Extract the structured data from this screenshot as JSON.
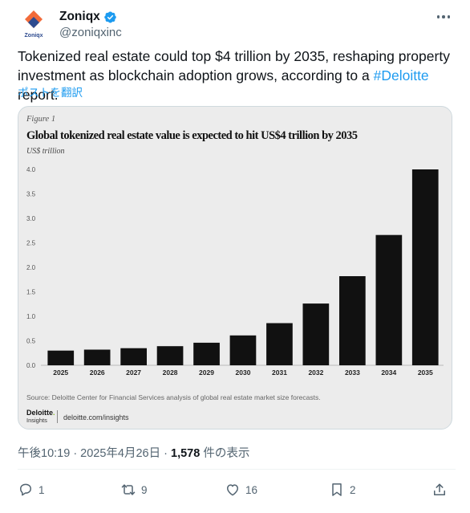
{
  "post": {
    "author_name": "Zoniqx",
    "handle": "@zoniqxinc",
    "avatar_wordmark": "Zoniqx",
    "text_before": "Tokenized real estate could top $4 trillion by 2035, reshaping property investment as blockchain adoption grows, according to a ",
    "hashtag": "#Deloitte",
    "text_after": " report.",
    "translate_link": "ポストを翻訳",
    "timestamp": "午後10:19 · 2025年4月26日 · ",
    "views_count": "1,578",
    "views_label": " 件の表示"
  },
  "media": {
    "figure_label": "Figure 1",
    "title": "Global tokenized real estate value is expected to hit US$4 trillion by 2035",
    "unit": "US$ trillion",
    "source": "Source: Deloitte Center for Financial Services analysis of global real estate market size forecasts.",
    "logo_main": "Deloitte",
    "logo_sub": "Insights",
    "logo_url": "deloitte.com/insights"
  },
  "chart_data": {
    "type": "bar",
    "categories": [
      "2025",
      "2026",
      "2027",
      "2028",
      "2029",
      "2030",
      "2031",
      "2032",
      "2033",
      "2034",
      "2035"
    ],
    "values": [
      0.3,
      0.32,
      0.35,
      0.39,
      0.46,
      0.61,
      0.86,
      1.26,
      1.82,
      2.66,
      4.0
    ],
    "title": "Global tokenized real estate value is expected to hit US$4 trillion by 2035",
    "ylabel": "US$ trillion",
    "xlabel": "",
    "ylim": [
      0,
      4.0
    ],
    "yticks": [
      "0.0",
      "0.5",
      "1.0",
      "1.5",
      "2.0",
      "2.5",
      "3.0",
      "3.5",
      "4.0"
    ],
    "grid": false,
    "bar_color": "#111111"
  },
  "actions": {
    "replies": "1",
    "reposts": "9",
    "likes": "16",
    "bookmarks": "2"
  },
  "colors": {
    "accent": "#1d9bf0",
    "muted": "#536471",
    "verified": "#1d9bf0"
  },
  "icons": [
    "verified-badge-icon",
    "more-icon",
    "reply-icon",
    "repost-icon",
    "like-icon",
    "bookmark-icon",
    "share-icon"
  ]
}
